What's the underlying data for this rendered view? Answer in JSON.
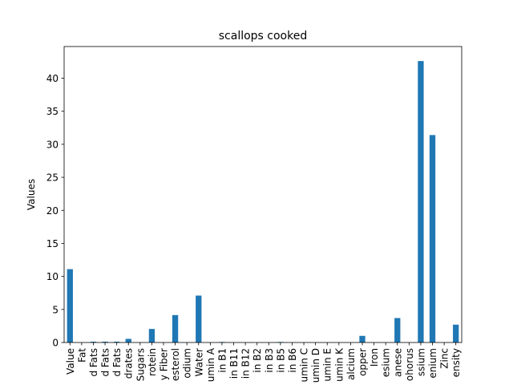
{
  "chart_data": {
    "type": "bar",
    "title": "scallops cooked",
    "xlabel": "",
    "ylabel": "Values",
    "ylim": [
      0,
      44.8
    ],
    "yticks": [
      0,
      5,
      10,
      15,
      20,
      25,
      30,
      35,
      40
    ],
    "grid": false,
    "legend": "none",
    "bar_color": "#1f77b4",
    "categories": [
      "Value",
      "Fat",
      "d Fats",
      "d Fats",
      "d Fats",
      "drates",
      "Sugars",
      "rotein",
      "y Fiber",
      "esterol",
      "odium",
      "Water",
      "umin A",
      "in B1",
      "in B11",
      "in B12",
      "in B2",
      "in B3",
      "in B5",
      "in B6",
      "umin C",
      "umin D",
      "umin E",
      "umin K",
      "alcium",
      "opper",
      "Iron",
      "esium",
      "anese",
      "ohorus",
      "ssium",
      "enium",
      "Zinc",
      "ensity"
    ],
    "values": [
      11.1,
      0.0,
      0.12,
      0.12,
      0.12,
      0.55,
      0.0,
      2.05,
      0.0,
      4.15,
      0.0,
      7.1,
      0.0,
      0.08,
      0.0,
      0.0,
      0.0,
      0.0,
      0.08,
      0.0,
      0.0,
      0.0,
      0.0,
      0.0,
      0.0,
      1.0,
      0.0,
      0.0,
      3.7,
      0.0,
      42.6,
      31.4,
      0.0,
      2.7
    ]
  }
}
